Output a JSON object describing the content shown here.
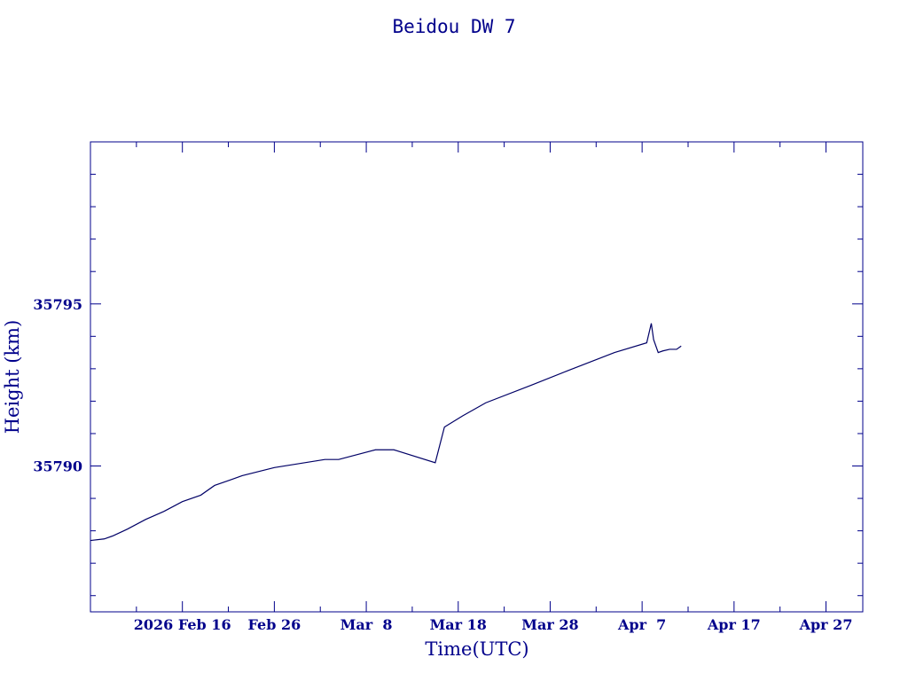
{
  "chart_data": {
    "type": "line",
    "title": "Beidou DW 7",
    "xlabel": "Time(UTC)",
    "ylabel": "Height (km)",
    "ylim": [
      35785.5,
      35800
    ],
    "xlim": [
      "2026-02-06",
      "2026-05-01"
    ],
    "x_tick_labels": [
      "2026 Feb 16",
      "Feb 26",
      "Mar  8",
      "Mar 18",
      "Mar 28",
      "Apr  7",
      "Apr 17",
      "Apr 27"
    ],
    "x_ticks": [
      "2026-02-16",
      "2026-02-26",
      "2026-03-08",
      "2026-03-18",
      "2026-03-28",
      "2026-04-07",
      "2026-04-17",
      "2026-04-27"
    ],
    "y_tick_labels": [
      "35790",
      "35795"
    ],
    "y_ticks": [
      35790,
      35795
    ],
    "grid": false,
    "line_color": "#000066",
    "text_color": "#00008b",
    "series": [
      {
        "x": [
          "2026-02-06T00:00",
          "2026-02-07T12:00",
          "2026-02-08T12:00",
          "2026-02-10T00:00",
          "2026-02-12T00:00",
          "2026-02-14T00:00",
          "2026-02-16T00:00",
          "2026-02-18T00:00",
          "2026-02-19T12:00",
          "2026-02-20T12:00",
          "2026-02-21T12:00",
          "2026-02-22T12:00",
          "2026-02-26T00:00",
          "2026-03-03T12:00",
          "2026-03-05T00:00",
          "2026-03-09T00:00",
          "2026-03-11T00:00",
          "2026-03-15T12:00",
          "2026-03-16T12:00",
          "2026-03-18T12:00",
          "2026-03-21T00:00",
          "2026-03-26T00:00",
          "2026-03-30T00:00",
          "2026-04-04T00:00",
          "2026-04-07T12:00",
          "2026-04-08T00:00",
          "2026-04-08T06:00",
          "2026-04-08T18:00",
          "2026-04-09T06:00",
          "2026-04-10T00:00",
          "2026-04-10T18:00",
          "2026-04-11T06:00"
        ],
        "y": [
          35787.7,
          35787.75,
          35787.85,
          35788.05,
          35788.35,
          35788.6,
          35788.9,
          35789.1,
          35789.4,
          35789.5,
          35789.6,
          35789.7,
          35789.95,
          35790.2,
          35790.2,
          35790.5,
          35790.5,
          35790.1,
          35791.2,
          35791.55,
          35791.95,
          35792.5,
          35792.95,
          35793.5,
          35793.8,
          35794.4,
          35793.9,
          35793.5,
          35793.55,
          35793.6,
          35793.6,
          35793.7
        ]
      }
    ]
  }
}
